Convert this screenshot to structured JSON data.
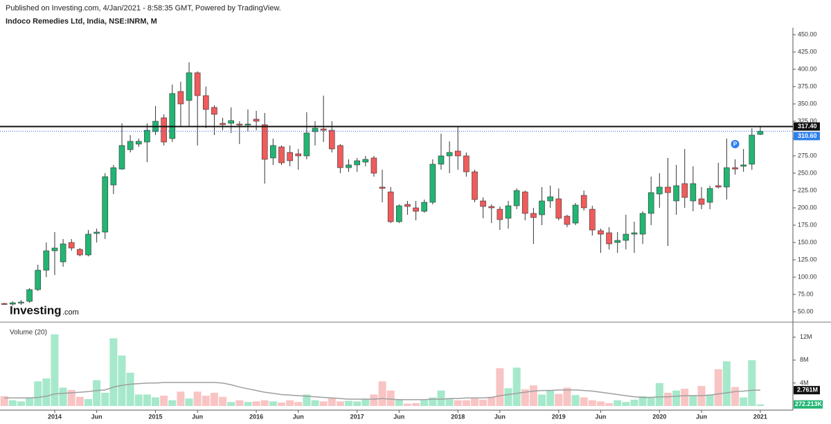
{
  "header": {
    "published": "Published on Investing.com, 4/Jan/2021 - 8:58:35 GMT, Powered by TradingView.",
    "symbol": "Indoco Remedies Ltd, India, NSE:INRM, M"
  },
  "logo": {
    "brand": "Investing",
    "suffix": ".com"
  },
  "chart_data": {
    "type": "candlestick",
    "categories": [
      null,
      null,
      null,
      null,
      null,
      null,
      "2014",
      null,
      null,
      null,
      null,
      "Jun",
      null,
      null,
      null,
      null,
      null,
      null,
      "2015",
      null,
      null,
      null,
      null,
      "Jun",
      null,
      null,
      null,
      null,
      null,
      null,
      "2016",
      null,
      null,
      null,
      null,
      "Jun",
      null,
      null,
      null,
      null,
      null,
      null,
      "2017",
      null,
      null,
      null,
      null,
      "Jun",
      null,
      null,
      null,
      null,
      null,
      null,
      "2018",
      null,
      null,
      null,
      null,
      "Jun",
      null,
      null,
      null,
      null,
      null,
      null,
      "2019",
      null,
      null,
      null,
      null,
      "Jun",
      null,
      null,
      null,
      null,
      null,
      null,
      "2020",
      null,
      null,
      null,
      null,
      "Jun",
      null,
      null,
      null,
      null,
      null,
      null,
      "2021"
    ],
    "open": [
      62,
      61,
      63,
      65,
      82,
      110,
      138,
      122,
      150,
      140,
      132,
      163,
      165,
      233,
      256,
      284,
      292,
      295,
      310,
      330,
      300,
      368,
      355,
      395,
      362,
      345,
      322,
      322,
      321,
      320,
      328,
      320,
      272,
      288,
      280,
      278,
      275,
      310,
      314,
      312,
      290,
      258,
      262,
      266,
      272,
      230,
      223,
      180,
      205,
      200,
      195,
      208,
      263,
      275,
      282,
      275,
      252,
      210,
      202,
      198,
      185,
      203,
      223,
      192,
      190,
      210,
      213,
      188,
      178,
      218,
      198,
      167,
      164,
      150,
      153,
      162,
      162,
      192,
      220,
      230,
      210,
      235,
      210,
      213,
      208,
      232,
      230,
      258,
      260,
      263,
      306
    ],
    "high": [
      63,
      65,
      67,
      84,
      118,
      150,
      165,
      155,
      155,
      142,
      168,
      170,
      250,
      262,
      322,
      305,
      300,
      322,
      347,
      335,
      378,
      382,
      410,
      397,
      375,
      348,
      330,
      345,
      325,
      342,
      340,
      337,
      300,
      290,
      290,
      285,
      338,
      325,
      362,
      325,
      292,
      270,
      272,
      275,
      275,
      255,
      230,
      205,
      210,
      210,
      212,
      270,
      307,
      296,
      318,
      280,
      255,
      215,
      205,
      202,
      210,
      228,
      225,
      200,
      230,
      232,
      228,
      190,
      207,
      225,
      203,
      170,
      172,
      165,
      190,
      180,
      195,
      245,
      250,
      272,
      262,
      285,
      260,
      230,
      232,
      265,
      300,
      270,
      285,
      315,
      317
    ],
    "low": [
      60,
      59,
      60,
      63,
      80,
      100,
      103,
      115,
      138,
      130,
      130,
      150,
      155,
      220,
      255,
      280,
      288,
      266,
      305,
      290,
      295,
      318,
      318,
      290,
      315,
      305,
      312,
      308,
      292,
      310,
      312,
      235,
      262,
      262,
      260,
      255,
      270,
      290,
      295,
      280,
      250,
      252,
      252,
      260,
      245,
      208,
      178,
      178,
      190,
      182,
      193,
      205,
      255,
      250,
      255,
      245,
      208,
      185,
      178,
      168,
      170,
      198,
      182,
      148,
      175,
      200,
      182,
      172,
      175,
      196,
      160,
      135,
      140,
      135,
      140,
      135,
      148,
      175,
      200,
      145,
      190,
      200,
      195,
      198,
      198,
      228,
      212,
      248,
      252,
      255,
      305
    ],
    "close": [
      61,
      63,
      64,
      82,
      110,
      138,
      142,
      148,
      142,
      132,
      162,
      165,
      245,
      258,
      290,
      296,
      296,
      312,
      325,
      295,
      365,
      350,
      395,
      362,
      342,
      335,
      320,
      326,
      320,
      321,
      325,
      270,
      290,
      265,
      268,
      275,
      308,
      315,
      312,
      285,
      258,
      262,
      268,
      270,
      250,
      228,
      180,
      203,
      202,
      195,
      208,
      263,
      275,
      280,
      275,
      252,
      212,
      202,
      200,
      183,
      203,
      225,
      192,
      186,
      210,
      216,
      185,
      176,
      204,
      200,
      168,
      162,
      148,
      153,
      162,
      164,
      192,
      222,
      230,
      222,
      232,
      215,
      235,
      205,
      228,
      230,
      258,
      256,
      262,
      305,
      310.6
    ],
    "up_color": "#22b573",
    "down_color": "#f05b5b",
    "ylim": [
      35,
      460
    ],
    "yticks": [
      {
        "value": 50,
        "label": "50.00"
      },
      {
        "value": 75,
        "label": "75.00"
      },
      {
        "value": 100,
        "label": "100.00"
      },
      {
        "value": 125,
        "label": "125.00"
      },
      {
        "value": 150,
        "label": "150.00"
      },
      {
        "value": 175,
        "label": "175.00"
      },
      {
        "value": 200,
        "label": "200.00"
      },
      {
        "value": 225,
        "label": "225.00"
      },
      {
        "value": 250,
        "label": "250.00"
      },
      {
        "value": 275,
        "label": "275.00"
      },
      {
        "value": 300,
        "label": "300.00"
      },
      {
        "value": 325,
        "label": "325.00"
      },
      {
        "value": 350,
        "label": "350.00"
      },
      {
        "value": 375,
        "label": "375.00"
      },
      {
        "value": 400,
        "label": "400.00"
      },
      {
        "value": 425,
        "label": "425.00"
      },
      {
        "value": 450,
        "label": "450.00"
      }
    ],
    "horizontal_line": {
      "value": 317.4,
      "label": "317.40"
    },
    "last_price": {
      "value": 310.6,
      "label": "310.60"
    },
    "annotation": {
      "label": "P",
      "x": 87,
      "value": 292
    },
    "volume_title": "Volume (20)",
    "volume": [
      1.7,
      1.0,
      0.8,
      1.5,
      4.3,
      4.8,
      12.5,
      3.2,
      2.8,
      1.6,
      1.2,
      4.5,
      2.3,
      11.8,
      8.8,
      5.8,
      2.0,
      2.0,
      1.5,
      1.8,
      1.0,
      2.5,
      1.3,
      2.5,
      1.8,
      2.3,
      1.6,
      0.7,
      1.0,
      0.7,
      0.8,
      1.0,
      0.8,
      0.6,
      1.0,
      0.7,
      2.0,
      1.0,
      0.8,
      1.4,
      0.8,
      0.9,
      0.8,
      1.2,
      2.0,
      4.3,
      2.7,
      1.2,
      0.4,
      0.5,
      1.0,
      1.5,
      2.7,
      1.2,
      1.0,
      1.0,
      1.3,
      1.1,
      1.6,
      6.6,
      3.1,
      6.7,
      2.9,
      3.6,
      2.0,
      2.7,
      2.1,
      3.2,
      1.9,
      1.5,
      1.0,
      0.8,
      0.5,
      1.0,
      0.7,
      1.1,
      1.7,
      1.6,
      4.0,
      2.3,
      2.7,
      3.0,
      1.9,
      3.5,
      2.0,
      6.4,
      7.8,
      3.3,
      1.5,
      8.0,
      0.272213
    ],
    "volume_ma": [
      1.4,
      1.4,
      1.4,
      1.4,
      1.5,
      1.7,
      2.1,
      2.2,
      2.3,
      2.4,
      2.5,
      2.7,
      2.8,
      3.3,
      3.6,
      3.8,
      3.9,
      4.0,
      4.0,
      4.1,
      4.1,
      4.1,
      4.1,
      4.1,
      4.1,
      4.1,
      4.0,
      3.7,
      3.3,
      3.0,
      2.7,
      2.4,
      2.2,
      2.0,
      1.9,
      1.8,
      1.7,
      1.6,
      1.5,
      1.4,
      1.3,
      1.2,
      1.2,
      1.2,
      1.2,
      1.3,
      1.2,
      1.1,
      1.1,
      1.1,
      1.1,
      1.2,
      1.2,
      1.3,
      1.3,
      1.4,
      1.4,
      1.4,
      1.5,
      1.8,
      2.0,
      2.2,
      2.4,
      2.6,
      2.7,
      2.7,
      2.8,
      2.8,
      2.8,
      2.7,
      2.6,
      2.4,
      2.2,
      2.0,
      1.8,
      1.6,
      1.5,
      1.5,
      1.6,
      1.6,
      1.7,
      1.8,
      1.8,
      1.8,
      1.9,
      2.1,
      2.3,
      2.5,
      2.6,
      2.75,
      2.761
    ],
    "volume_up_color": "#a6e8cb",
    "volume_down_color": "#f9c4c4",
    "volume_ma_color": "#9e9e9e",
    "y2lim": [
      0,
      14.5
    ],
    "y2ticks": [
      {
        "value": 4,
        "label": "4M"
      },
      {
        "value": 8,
        "label": "8M"
      },
      {
        "value": 12,
        "label": "12M"
      }
    ],
    "volume_ma_last": {
      "value": 2.761,
      "label": "2.761M"
    },
    "last_volume": {
      "value": 0.272213,
      "label": "272.213K"
    }
  }
}
